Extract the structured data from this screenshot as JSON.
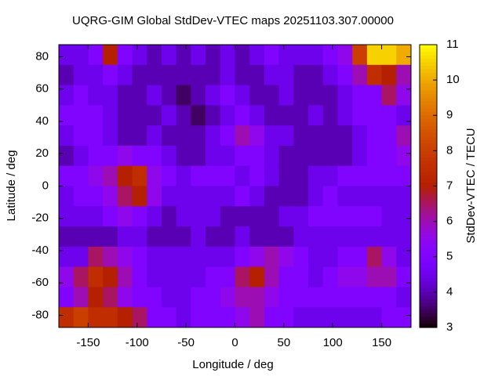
{
  "chart_data": {
    "type": "heatmap",
    "title": "UQRG-GIM Global StdDev-VTEC maps 20251103.307.00000",
    "x_label": "Longitude / deg",
    "y_label": "Latitude / deg",
    "colorbar_label": "StdDev-VTEC / TECU",
    "xlim": [
      -180,
      180
    ],
    "ylim": [
      -87.5,
      87.5
    ],
    "zlim": [
      3,
      11
    ],
    "xticks": [
      -150,
      -100,
      -50,
      0,
      50,
      100,
      150
    ],
    "yticks": [
      -80,
      -60,
      -40,
      -20,
      0,
      20,
      40,
      60,
      80
    ],
    "zticks": [
      3,
      4,
      5,
      6,
      7,
      8,
      9,
      10,
      11
    ],
    "x": [
      -172.5,
      -157.5,
      -142.5,
      -127.5,
      -112.5,
      -97.5,
      -82.5,
      -67.5,
      -52.5,
      -37.5,
      -22.5,
      -7.5,
      7.5,
      22.5,
      37.5,
      52.5,
      67.5,
      82.5,
      97.5,
      112.5,
      127.5,
      142.5,
      157.5,
      172.5
    ],
    "y": [
      81.25,
      68.75,
      56.25,
      43.75,
      31.25,
      18.75,
      6.25,
      -6.25,
      -18.75,
      -31.25,
      -43.75,
      -56.25,
      -68.75,
      -81.25
    ],
    "z": [
      [
        4.5,
        4.5,
        5,
        7,
        5,
        4.5,
        4,
        4.5,
        4,
        4.5,
        4,
        4.5,
        4,
        4.5,
        5,
        4.5,
        4.5,
        4.5,
        5,
        5.5,
        8,
        10.5,
        10.5,
        10
      ],
      [
        4,
        4.5,
        4.5,
        5,
        4.5,
        4,
        4,
        4,
        4,
        4,
        4,
        4.5,
        4,
        4,
        4.5,
        4.5,
        4,
        4,
        4.5,
        5,
        6,
        7.5,
        7,
        6
      ],
      [
        4.5,
        5,
        4.5,
        4.5,
        4,
        4,
        4.5,
        4,
        3.5,
        4,
        4.5,
        5,
        4.5,
        4,
        4,
        4.5,
        4,
        4,
        4,
        4.5,
        5,
        5,
        6.5,
        5.5
      ],
      [
        5,
        5,
        5,
        4.5,
        4,
        4,
        4,
        4.5,
        4,
        3.5,
        4,
        4.5,
        5,
        4.5,
        4,
        4,
        4,
        4.5,
        4,
        4.5,
        5,
        5,
        5,
        4.5
      ],
      [
        4.5,
        5,
        5,
        4.5,
        4,
        4,
        4.5,
        4,
        4,
        4,
        4.5,
        5,
        6,
        5.5,
        4.5,
        4.5,
        4,
        4,
        4,
        4,
        4.5,
        5,
        5,
        6
      ],
      [
        4,
        4.5,
        5,
        5,
        5.5,
        5,
        5,
        4.5,
        4,
        4,
        4.5,
        4.5,
        5,
        5,
        4.5,
        4,
        4,
        4,
        4,
        4,
        4.5,
        5,
        5,
        5.5
      ],
      [
        5,
        5,
        5.5,
        6,
        7,
        7.5,
        5.5,
        5,
        4.5,
        5,
        5,
        5,
        4.5,
        5,
        4.5,
        4,
        4,
        4.5,
        4.5,
        5,
        5,
        5,
        5,
        5
      ],
      [
        4.5,
        5,
        5,
        5.5,
        6.5,
        7,
        5.5,
        4.5,
        4.5,
        4.5,
        4.5,
        4.5,
        5,
        4.5,
        4,
        4,
        4,
        4.5,
        5,
        4.5,
        4.5,
        4.5,
        4.5,
        4.5
      ],
      [
        4.5,
        4.5,
        4.5,
        5,
        5.5,
        5,
        4.5,
        4,
        4.5,
        4.5,
        4.5,
        4,
        4,
        4,
        4,
        4.5,
        4.5,
        5,
        5,
        5,
        5,
        5,
        4.5,
        4.5
      ],
      [
        4,
        4,
        4,
        4,
        4.5,
        4.5,
        4,
        4,
        4,
        4.5,
        4,
        4,
        4.5,
        4,
        4,
        4,
        4.5,
        4.5,
        4.5,
        4.5,
        4.5,
        4.5,
        4.5,
        4.5
      ],
      [
        4.5,
        4.5,
        6.5,
        6,
        5.5,
        5,
        4.5,
        4.5,
        4.5,
        4.5,
        4.5,
        4.5,
        5,
        5.5,
        6,
        5.5,
        5,
        4.5,
        4.5,
        5,
        5,
        6.5,
        5.5,
        4.5
      ],
      [
        5.5,
        6.5,
        7.5,
        7,
        6,
        5,
        4.5,
        4.5,
        4.5,
        4.5,
        5,
        5,
        6.5,
        7,
        6,
        5,
        5,
        4.5,
        5,
        5.5,
        5.5,
        6,
        6,
        5
      ],
      [
        5,
        6,
        7,
        6.5,
        5.5,
        5,
        5,
        4.5,
        4.5,
        5,
        5,
        5.5,
        6,
        6,
        5.5,
        5,
        5,
        5,
        5,
        5,
        5,
        5,
        5,
        4.5
      ],
      [
        7.5,
        8,
        7.5,
        7.5,
        7,
        6.5,
        5,
        5,
        4.5,
        5,
        5,
        5,
        5.5,
        6,
        5,
        5,
        4.5,
        4.5,
        4.5,
        4.5,
        4.5,
        4.5,
        5,
        5
      ]
    ]
  }
}
